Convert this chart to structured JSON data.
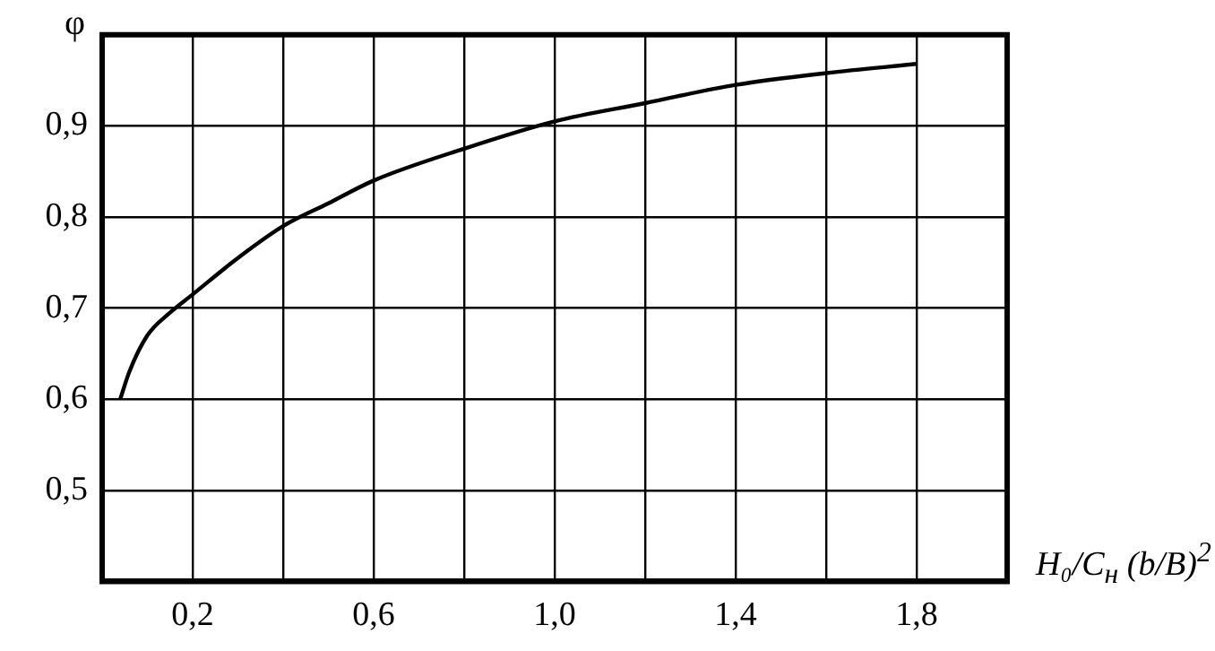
{
  "chart_data": {
    "type": "line",
    "ylabel": "φ",
    "xlabel": "H₀/C$_{н}$ (b/B)$^{2}$",
    "x": [
      0.04,
      0.06,
      0.1,
      0.15,
      0.2,
      0.3,
      0.4,
      0.5,
      0.6,
      0.8,
      1.0,
      1.2,
      1.4,
      1.6,
      1.8
    ],
    "series": [
      {
        "color": "#000000",
        "values": [
          0.6,
          0.63,
          0.67,
          0.695,
          0.715,
          0.755,
          0.79,
          0.815,
          0.84,
          0.875,
          0.905,
          0.925,
          0.945,
          0.958,
          0.968
        ]
      }
    ],
    "xlim": [
      0,
      2.0
    ],
    "ylim": [
      0.4,
      1.0
    ],
    "xticks": [
      {
        "value": 0.2,
        "label": "0,2"
      },
      {
        "value": 0.4,
        "label": null
      },
      {
        "value": 0.6,
        "label": "0,6"
      },
      {
        "value": 0.8,
        "label": null
      },
      {
        "value": 1.0,
        "label": "1,0"
      },
      {
        "value": 1.2,
        "label": null
      },
      {
        "value": 1.4,
        "label": "1,4"
      },
      {
        "value": 1.6,
        "label": null
      },
      {
        "value": 1.8,
        "label": "1,8"
      }
    ],
    "yticks": [
      {
        "value": 0.5,
        "label": "0,5"
      },
      {
        "value": 0.6,
        "label": "0,6"
      },
      {
        "value": 0.7,
        "label": "0,7"
      },
      {
        "value": 0.8,
        "label": "0,8"
      },
      {
        "value": 0.9,
        "label": "0,9"
      }
    ],
    "grid": true,
    "legend": false,
    "marker": "none",
    "line_style": "solid"
  }
}
